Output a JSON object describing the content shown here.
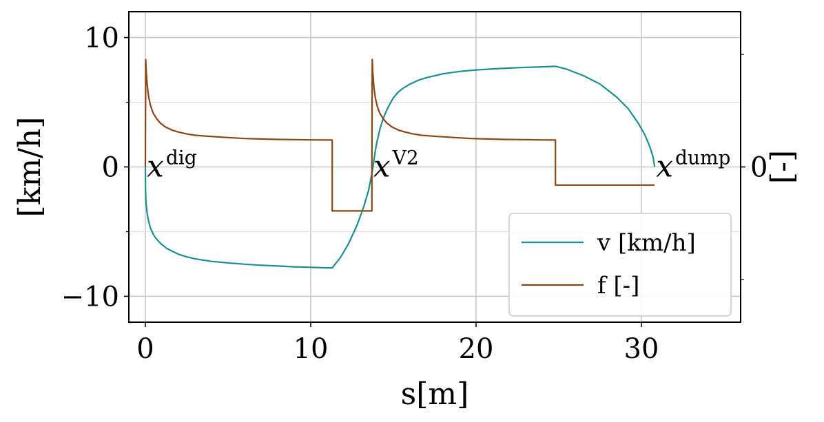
{
  "chart_data": {
    "type": "line",
    "xlabel": "s[m]",
    "ylabel": "[km/h]",
    "ylabel_right": "[-]",
    "xlim": [
      -1,
      36
    ],
    "ylim": [
      -12,
      12
    ],
    "x_ticks": [
      0,
      10,
      20,
      30
    ],
    "x_tick_labels": [
      "0",
      "10",
      "20",
      "30"
    ],
    "y_ticks": [
      -10,
      0,
      10
    ],
    "y_tick_labels": [
      "−10",
      "0",
      "10"
    ],
    "y_right_ticks": [
      0
    ],
    "y_right_tick_labels": [
      "0"
    ],
    "grid": true,
    "legend_placement": "bottom-right",
    "annotations": [
      {
        "base": "x",
        "sup": "dig",
        "x": 0.0,
        "y": 0.0
      },
      {
        "base": "x",
        "sup": "V2",
        "x": 13.7,
        "y": 0.0
      },
      {
        "base": "x",
        "sup": "dump",
        "x": 30.8,
        "y": 0.0
      }
    ],
    "series": [
      {
        "name": "v [km/h]",
        "color": "#1a8f8f",
        "x": [
          0.0,
          0.01,
          0.03,
          0.06,
          0.1,
          0.15,
          0.2,
          0.3,
          0.4,
          0.5,
          0.6,
          0.8,
          1.0,
          1.3,
          1.6,
          2.0,
          2.5,
          3.0,
          3.5,
          4.0,
          5.0,
          6.0,
          7.0,
          8.0,
          9.0,
          10.0,
          11.0,
          11.3,
          11.8,
          12.3,
          12.8,
          13.2,
          13.5,
          13.7,
          13.8,
          13.9,
          14.0,
          14.2,
          14.4,
          14.6,
          14.8,
          15.0,
          15.3,
          15.6,
          16.0,
          16.5,
          17.0,
          18.0,
          19.0,
          20.0,
          21.0,
          22.0,
          23.0,
          24.0,
          24.8,
          25.5,
          26.5,
          27.5,
          28.5,
          29.2,
          29.8,
          30.2,
          30.5,
          30.7,
          30.8
        ],
        "y": [
          0.0,
          -1.6,
          -2.5,
          -3.0,
          -3.5,
          -3.9,
          -4.2,
          -4.7,
          -5.0,
          -5.25,
          -5.45,
          -5.75,
          -6.0,
          -6.3,
          -6.5,
          -6.75,
          -6.95,
          -7.1,
          -7.2,
          -7.3,
          -7.42,
          -7.52,
          -7.6,
          -7.66,
          -7.72,
          -7.76,
          -7.8,
          -7.8,
          -7.0,
          -5.9,
          -4.5,
          -3.1,
          -1.8,
          -0.5,
          0.3,
          1.2,
          1.9,
          3.0,
          3.8,
          4.4,
          4.9,
          5.35,
          5.8,
          6.1,
          6.4,
          6.7,
          6.9,
          7.2,
          7.38,
          7.5,
          7.58,
          7.64,
          7.7,
          7.74,
          7.78,
          7.55,
          7.05,
          6.4,
          5.4,
          4.5,
          3.4,
          2.5,
          1.6,
          0.8,
          0.0
        ]
      },
      {
        "name": "f [-]",
        "color": "#8b4513",
        "x": [
          0.0,
          0.02,
          0.05,
          0.1,
          0.15,
          0.2,
          0.3,
          0.4,
          0.5,
          0.7,
          0.9,
          1.2,
          1.6,
          2.0,
          2.5,
          3.0,
          4.0,
          5.0,
          6.0,
          7.0,
          8.0,
          9.0,
          10.0,
          11.0,
          11.3,
          11.3,
          13.7,
          13.7,
          13.72,
          13.75,
          13.8,
          13.85,
          13.9,
          14.0,
          14.1,
          14.2,
          14.4,
          14.6,
          14.9,
          15.3,
          15.7,
          16.2,
          16.7,
          17.7,
          18.7,
          19.7,
          20.7,
          21.7,
          22.7,
          23.7,
          24.7,
          24.8,
          24.8,
          30.8
        ],
        "y": [
          0.0,
          8.3,
          7.4,
          6.5,
          5.9,
          5.4,
          4.8,
          4.4,
          4.1,
          3.7,
          3.4,
          3.1,
          2.85,
          2.7,
          2.55,
          2.45,
          2.35,
          2.27,
          2.2,
          2.16,
          2.13,
          2.11,
          2.09,
          2.08,
          2.08,
          -3.4,
          -3.4,
          0.0,
          8.3,
          7.4,
          6.5,
          5.9,
          5.4,
          4.8,
          4.4,
          4.1,
          3.7,
          3.4,
          3.1,
          2.85,
          2.7,
          2.55,
          2.45,
          2.35,
          2.27,
          2.2,
          2.16,
          2.13,
          2.11,
          2.09,
          2.08,
          2.08,
          -1.4,
          -1.4
        ]
      }
    ]
  }
}
